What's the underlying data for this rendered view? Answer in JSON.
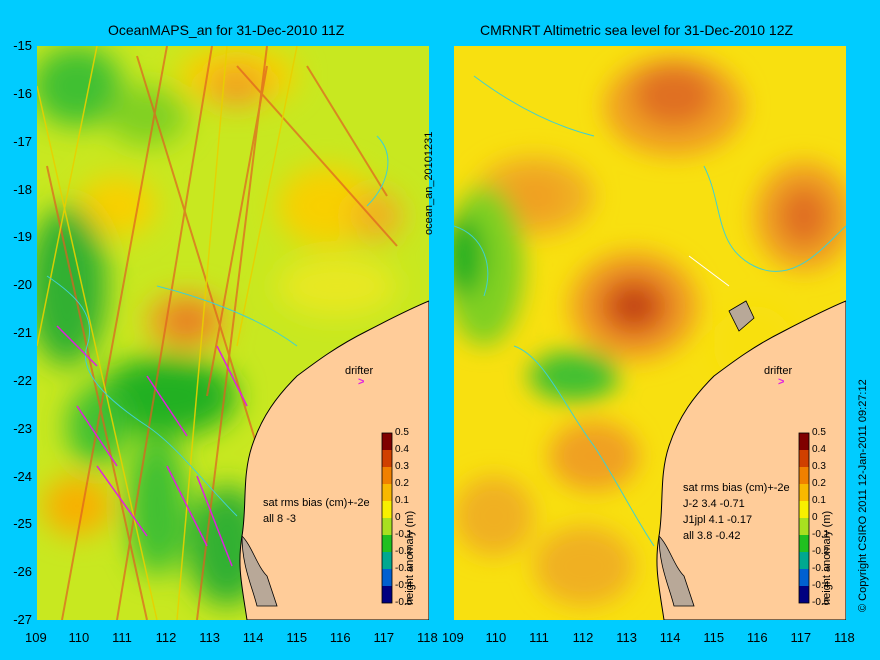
{
  "left_panel": {
    "title": "OceanMAPS_an for 31-Dec-2010 11Z",
    "stats_header": "sat rms bias (cm)+-2e",
    "stats": [
      "all 8 -3"
    ],
    "drifter_label": "drifter"
  },
  "right_panel": {
    "title": "CMRNRT Altimetric sea level  for 31-Dec-2010 12Z",
    "stats_header": "sat rms bias (cm)+-2e",
    "stats": [
      "J-2   3.4 -0.71",
      "J1jpl  4.1 -0.17",
      "all  3.8 -0.42"
    ],
    "drifter_label": "drifter"
  },
  "side_label": "ocean_an_20101231",
  "copyright": "© Copyright CSIRO 2011    12-Jan-2011 09:27:12",
  "colorbar": {
    "title": "height anomaly (m)",
    "ticks": [
      "0.5",
      "0.4",
      "0.3",
      "0.2",
      "0.1",
      "0",
      "-0.1",
      "-0.2",
      "-0.3",
      "-0.4",
      "-0.5"
    ],
    "colors": [
      "#800000",
      "#d04000",
      "#f08000",
      "#f8b800",
      "#f8f000",
      "#a8e020",
      "#20c020",
      "#00a890",
      "#0060d0",
      "#0020a0",
      "#000080"
    ]
  },
  "axes": {
    "y_ticks": [
      "-15",
      "-16",
      "-17",
      "-18",
      "-19",
      "-20",
      "-21",
      "-22",
      "-23",
      "-24",
      "-25",
      "-26",
      "-27"
    ],
    "x_ticks": [
      "109",
      "110",
      "111",
      "112",
      "113",
      "114",
      "115",
      "116",
      "117",
      "118"
    ],
    "x_range": [
      109,
      118
    ],
    "y_range": [
      -27,
      -15
    ]
  },
  "colors": {
    "background": "#00ccff",
    "land": "#ffcc99",
    "land_island": "#b8a898"
  }
}
